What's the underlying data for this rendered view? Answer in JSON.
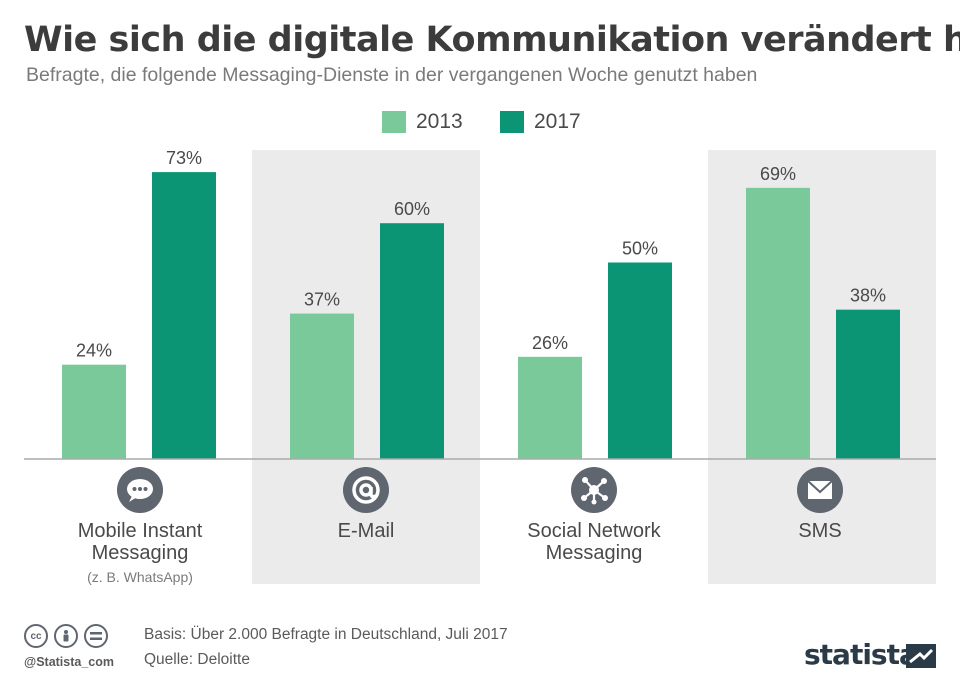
{
  "header": {
    "title": "Wie sich die digitale Kommunikation verändert hat",
    "subtitle": "Befragte, die folgende Messaging-Dienste in der vergangenen Woche genutzt haben"
  },
  "colors": {
    "series_2013": "#79c99a",
    "series_2017": "#0c9574",
    "shade": "#ebebeb",
    "icon": "#5f6670",
    "baseline": "#aaaaaa"
  },
  "categories": [
    {
      "label_line1": "Mobile Instant",
      "label_line2": "Messaging",
      "note": "(z. B. WhatsApp)",
      "icon": "chat-bubble-icon"
    },
    {
      "label_line1": "E-Mail",
      "label_line2": "",
      "note": "",
      "icon": "at-sign-icon"
    },
    {
      "label_line1": "Social Network",
      "label_line2": "Messaging",
      "note": "",
      "icon": "network-icon"
    },
    {
      "label_line1": "SMS",
      "label_line2": "",
      "note": "",
      "icon": "envelope-icon"
    }
  ],
  "chart_data": {
    "type": "bar",
    "categories": [
      "Mobile Instant Messaging",
      "E-Mail",
      "Social Network Messaging",
      "SMS"
    ],
    "series": [
      {
        "name": "2013",
        "values": [
          24,
          37,
          26,
          69
        ]
      },
      {
        "name": "2017",
        "values": [
          73,
          60,
          50,
          38
        ]
      }
    ],
    "value_suffix": "%",
    "ylim": [
      0,
      80
    ],
    "legend_position": "top-center",
    "grid": false
  },
  "footer": {
    "handle": "@Statista_com",
    "basis": "Basis: Über 2.000 Befragte in Deutschland, Juli 2017",
    "source": "Quelle: Deloitte",
    "brand": "statista"
  }
}
